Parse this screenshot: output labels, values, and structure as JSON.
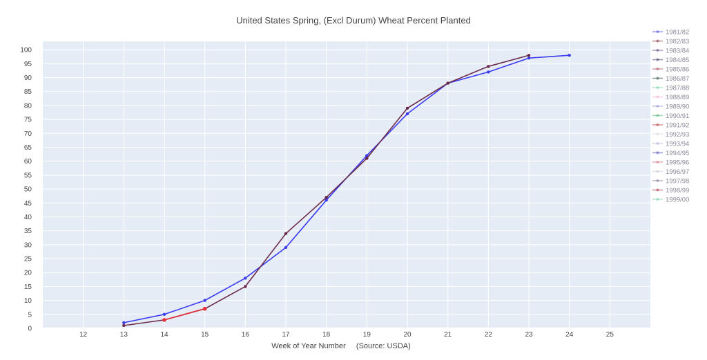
{
  "chart_data": {
    "type": "line",
    "title": "United States Spring, (Excl Durum) Wheat Percent Planted",
    "xlabel": "Week of Year Number     (Source: USDA)",
    "ylabel": "",
    "xlim": [
      11,
      26
    ],
    "ylim": [
      0,
      103
    ],
    "xticks": [
      12,
      13,
      14,
      15,
      16,
      17,
      18,
      19,
      20,
      21,
      22,
      23,
      24,
      25
    ],
    "yticks": [
      0,
      5,
      10,
      15,
      20,
      25,
      30,
      35,
      40,
      45,
      50,
      55,
      60,
      65,
      70,
      75,
      80,
      85,
      90,
      95,
      100
    ],
    "grid": true,
    "legend_position": "right",
    "background_color": "#e5ecf6",
    "legend": [
      {
        "name": "1981/82",
        "color": "#5b5be8"
      },
      {
        "name": "1982/83",
        "color": "#8a3a4a"
      },
      {
        "name": "1983/84",
        "color": "#6b4a8a"
      },
      {
        "name": "1984/85",
        "color": "#4a3f6b"
      },
      {
        "name": "1985/86",
        "color": "#b05a6a"
      },
      {
        "name": "1986/87",
        "color": "#3a5a4a"
      },
      {
        "name": "1987/88",
        "color": "#7ad6a8"
      },
      {
        "name": "1988/89",
        "color": "#e8b8d0"
      },
      {
        "name": "1989/90",
        "color": "#9a9ad8"
      },
      {
        "name": "1990/91",
        "color": "#5ab87a"
      },
      {
        "name": "1991/92",
        "color": "#b84a4a"
      },
      {
        "name": "1992/93",
        "color": "#d8d8e8"
      },
      {
        "name": "1993/94",
        "color": "#b8b8e0"
      },
      {
        "name": "1994/95",
        "color": "#5a5ab8"
      },
      {
        "name": "1995/96",
        "color": "#d87a8a"
      },
      {
        "name": "1996/97",
        "color": "#c8c8d8"
      },
      {
        "name": "1997/98",
        "color": "#8a7a9a"
      },
      {
        "name": "1998/99",
        "color": "#b03a4a"
      },
      {
        "name": "1999/00",
        "color": "#7ad6a8"
      }
    ],
    "lines": [
      {
        "color": "#3b3bf0",
        "x": [
          13,
          14,
          15,
          16,
          17,
          18,
          19,
          20,
          21,
          22,
          23,
          24
        ],
        "y": [
          2,
          5,
          10,
          18,
          29,
          46,
          62,
          77,
          88,
          92,
          97,
          98
        ]
      },
      {
        "color": "#6b2a4a",
        "x": [
          13,
          14,
          15,
          16,
          17,
          18,
          19,
          20,
          21,
          22,
          23
        ],
        "y": [
          1,
          3,
          7,
          15,
          34,
          47,
          61,
          79,
          88,
          94,
          98
        ]
      },
      {
        "color": "#e8303a",
        "x": [
          14,
          15
        ],
        "y": [
          3,
          7
        ]
      }
    ]
  }
}
